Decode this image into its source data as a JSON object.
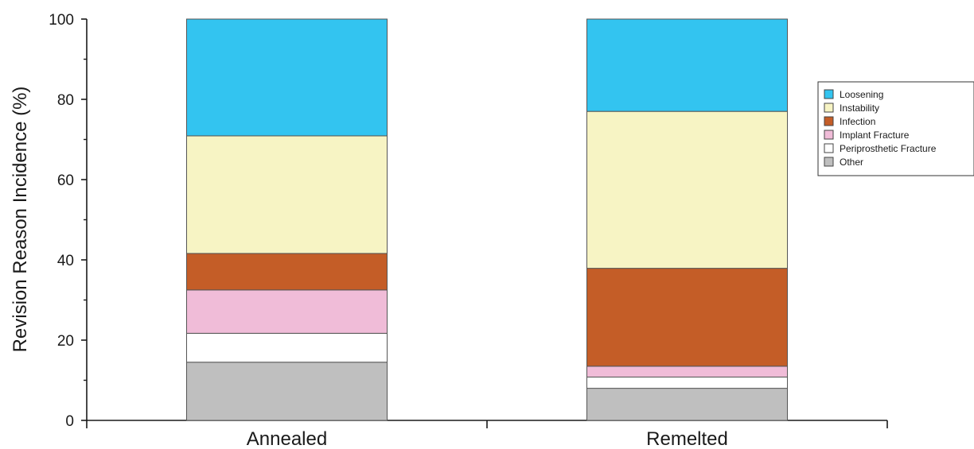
{
  "chart_data": {
    "type": "bar",
    "stacked": true,
    "categories": [
      "Annealed",
      "Remelted"
    ],
    "ylabel": "Revision Reason Incidence (%)",
    "xlabel": "",
    "ylim": [
      0,
      100
    ],
    "yticks": [
      0,
      20,
      40,
      60,
      80,
      100
    ],
    "grid": false,
    "legend_position": "right",
    "series": [
      {
        "name": "Other",
        "color": "#bfbfbf",
        "values": [
          14.5,
          8
        ]
      },
      {
        "name": "Periprosthetic Fracture",
        "color": "#ffffff",
        "values": [
          7.2,
          2.8
        ]
      },
      {
        "name": "Implant Fracture",
        "color": "#f0bcd8",
        "values": [
          10.8,
          2.7
        ]
      },
      {
        "name": "Infection",
        "color": "#c45d27",
        "values": [
          9.1,
          24.4
        ]
      },
      {
        "name": "Instability",
        "color": "#f7f4c4",
        "values": [
          29.3,
          39.1
        ]
      },
      {
        "name": "Loosening",
        "color": "#33c4f0",
        "values": [
          29.1,
          23
        ]
      }
    ],
    "legend_order": [
      "Loosening",
      "Instability",
      "Infection",
      "Implant Fracture",
      "Periprosthetic Fracture",
      "Other"
    ]
  }
}
